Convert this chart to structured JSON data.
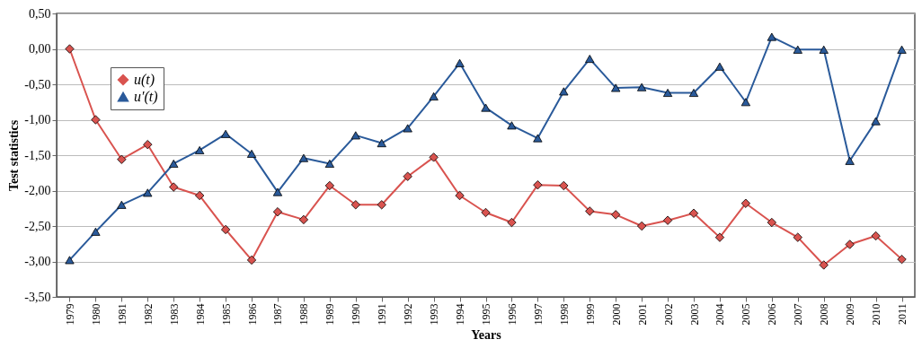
{
  "chart_data": {
    "type": "line",
    "xlabel": "Years",
    "ylabel": "Test statistics",
    "categories": [
      "1979",
      "1980",
      "1981",
      "1982",
      "1983",
      "1984",
      "1985",
      "1986",
      "1987",
      "1988",
      "1989",
      "1990",
      "1991",
      "1992",
      "1993",
      "1994",
      "1995",
      "1996",
      "1997",
      "1998",
      "1999",
      "2000",
      "2001",
      "2002",
      "2003",
      "2004",
      "2005",
      "2006",
      "2007",
      "2008",
      "2009",
      "2010",
      "2011"
    ],
    "series": [
      {
        "name": "u(t)",
        "color": "#d9534f",
        "marker": "diamond",
        "values": [
          0.0,
          -1.0,
          -1.56,
          -1.35,
          -1.95,
          -2.07,
          -2.55,
          -2.98,
          -2.3,
          -2.41,
          -1.93,
          -2.2,
          -2.2,
          -1.8,
          -1.53,
          -2.07,
          -2.31,
          -2.45,
          -1.92,
          -1.93,
          -2.29,
          -2.34,
          -2.5,
          -2.42,
          -2.32,
          -2.66,
          -2.18,
          -2.45,
          -2.66,
          -3.05,
          -2.76,
          -2.64,
          -2.97
        ]
      },
      {
        "name": "u′(t)",
        "color": "#2a5a9a",
        "marker": "triangle",
        "values": [
          -2.98,
          -2.58,
          -2.2,
          -2.03,
          -1.62,
          -1.43,
          -1.2,
          -1.48,
          -2.02,
          -1.54,
          -1.62,
          -1.22,
          -1.33,
          -1.12,
          -0.67,
          -0.2,
          -0.83,
          -1.08,
          -1.26,
          -0.6,
          -0.14,
          -0.55,
          -0.54,
          -0.62,
          -0.62,
          -0.25,
          -0.75,
          0.17,
          -0.01,
          -0.01,
          -1.58,
          -1.02,
          -0.01
        ]
      }
    ],
    "ylim": [
      -3.5,
      0.5
    ],
    "yticks": [
      {
        "value": -3.5,
        "label": "-3,50"
      },
      {
        "value": -3.0,
        "label": "-3,00"
      },
      {
        "value": -2.5,
        "label": "-2,50"
      },
      {
        "value": -2.0,
        "label": "-2,00"
      },
      {
        "value": -1.5,
        "label": "-1,50"
      },
      {
        "value": -1.0,
        "label": "-1,00"
      },
      {
        "value": -0.5,
        "label": "-0,50"
      },
      {
        "value": 0.0,
        "label": "0,00"
      },
      {
        "value": 0.5,
        "label": "0,50"
      }
    ],
    "grid": "y",
    "legend": "top left",
    "line_style": "solid"
  }
}
